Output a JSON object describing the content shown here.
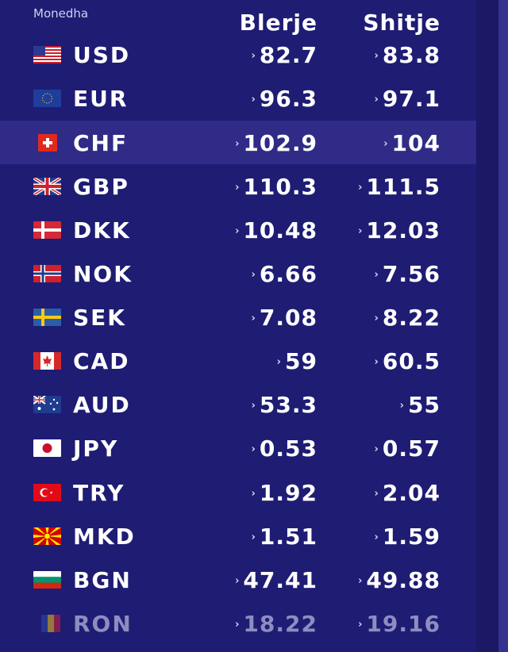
{
  "header": {
    "currency": "Monedha",
    "buy": "Blerje",
    "sell": "Shitje"
  },
  "arrow_glyph": "›",
  "rates": [
    {
      "code": "USD",
      "buy": "82.7",
      "sell": "83.8",
      "flag": "us-flag-icon"
    },
    {
      "code": "EUR",
      "buy": "96.3",
      "sell": "97.1",
      "flag": "eu-flag-icon"
    },
    {
      "code": "CHF",
      "buy": "102.9",
      "sell": "104",
      "flag": "ch-flag-icon"
    },
    {
      "code": "GBP",
      "buy": "110.3",
      "sell": "111.5",
      "flag": "gb-flag-icon"
    },
    {
      "code": "DKK",
      "buy": "10.48",
      "sell": "12.03",
      "flag": "dk-flag-icon"
    },
    {
      "code": "NOK",
      "buy": "6.66",
      "sell": "7.56",
      "flag": "no-flag-icon"
    },
    {
      "code": "SEK",
      "buy": "7.08",
      "sell": "8.22",
      "flag": "se-flag-icon"
    },
    {
      "code": "CAD",
      "buy": "59",
      "sell": "60.5",
      "flag": "ca-flag-icon"
    },
    {
      "code": "AUD",
      "buy": "53.3",
      "sell": "55",
      "flag": "au-flag-icon"
    },
    {
      "code": "JPY",
      "buy": "0.53",
      "sell": "0.57",
      "flag": "jp-flag-icon"
    },
    {
      "code": "TRY",
      "buy": "1.92",
      "sell": "2.04",
      "flag": "tr-flag-icon"
    },
    {
      "code": "MKD",
      "buy": "1.51",
      "sell": "1.59",
      "flag": "mk-flag-icon"
    },
    {
      "code": "BGN",
      "buy": "47.41",
      "sell": "49.88",
      "flag": "bg-flag-icon"
    },
    {
      "code": "RON",
      "buy": "18.22",
      "sell": "19.16",
      "flag": "ro-flag-icon"
    }
  ],
  "colors": {
    "background": "#1f1c74",
    "highlight_row": "#2f2b86",
    "text": "#ffffff"
  }
}
